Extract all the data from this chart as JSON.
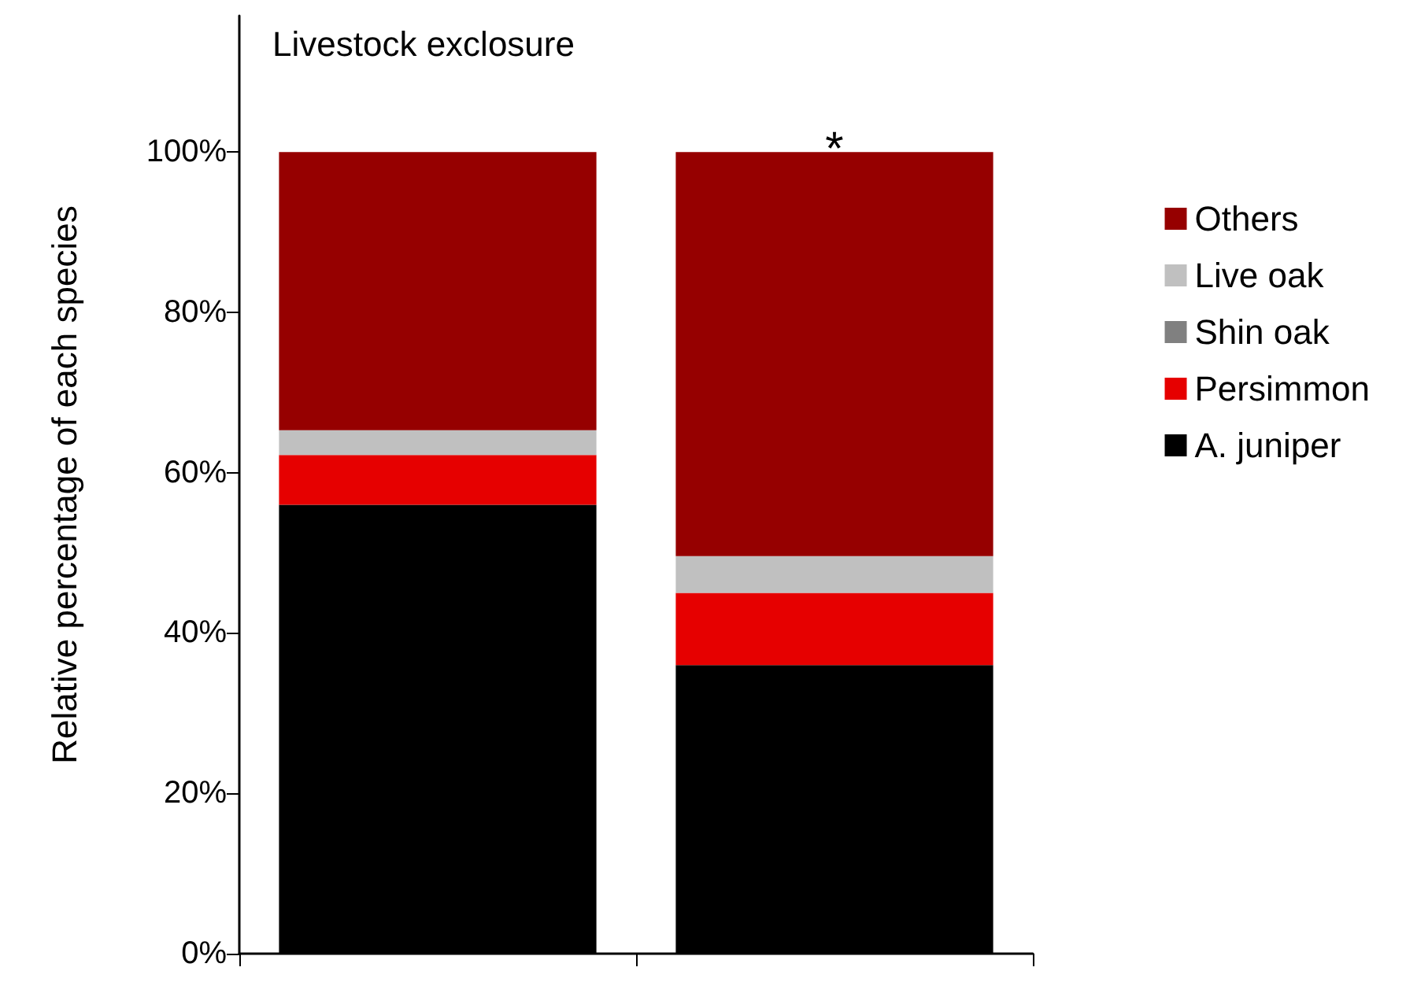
{
  "chart_data": {
    "type": "bar",
    "title": "Livestock exclosure",
    "ylabel": "Relative percentage of each species",
    "categories": [
      null,
      null
    ],
    "stacked": true,
    "legend": "right",
    "grid": false,
    "series": [
      {
        "name": "A. juniper",
        "color": "#000000",
        "values": [
          56,
          36
        ]
      },
      {
        "name": "Persimmon",
        "color": "#e60000",
        "values": [
          6.2,
          9
        ]
      },
      {
        "name": "Shin oak",
        "color": "#808080",
        "values": [
          0,
          0
        ]
      },
      {
        "name": "Live oak",
        "color": "#c0c0c0",
        "values": [
          3.1,
          4.6
        ]
      },
      {
        "name": "Others",
        "color": "#960000",
        "values": [
          34.7,
          50.4
        ]
      }
    ],
    "ylim": [
      0,
      117
    ],
    "yticks": [
      {
        "value": 0,
        "label": "0%"
      },
      {
        "value": 20,
        "label": "20%"
      },
      {
        "value": 40,
        "label": "40%"
      },
      {
        "value": 60,
        "label": "60%"
      },
      {
        "value": 80,
        "label": "80%"
      },
      {
        "value": 100,
        "label": "100%"
      }
    ],
    "annotations": [
      "*"
    ]
  }
}
